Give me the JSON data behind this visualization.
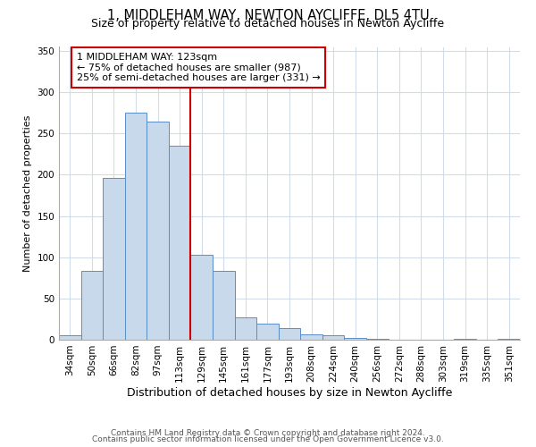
{
  "title": "1, MIDDLEHAM WAY, NEWTON AYCLIFFE, DL5 4TU",
  "subtitle": "Size of property relative to detached houses in Newton Aycliffe",
  "xlabel": "Distribution of detached houses by size in Newton Aycliffe",
  "ylabel": "Number of detached properties",
  "bar_labels": [
    "34sqm",
    "50sqm",
    "66sqm",
    "82sqm",
    "97sqm",
    "113sqm",
    "129sqm",
    "145sqm",
    "161sqm",
    "177sqm",
    "193sqm",
    "208sqm",
    "224sqm",
    "240sqm",
    "256sqm",
    "272sqm",
    "288sqm",
    "303sqm",
    "319sqm",
    "335sqm",
    "351sqm"
  ],
  "bar_values": [
    5,
    83,
    196,
    275,
    265,
    235,
    103,
    83,
    27,
    19,
    14,
    7,
    5,
    2,
    1,
    0,
    0,
    0,
    1,
    0,
    1
  ],
  "bar_color": "#c9d9ec",
  "bar_edge_color": "#5b8dc8",
  "vline_x": 5.5,
  "vline_color": "#cc0000",
  "annotation_text": "1 MIDDLEHAM WAY: 123sqm\n← 75% of detached houses are smaller (987)\n25% of semi-detached houses are larger (331) →",
  "annotation_box_color": "#ffffff",
  "annotation_box_edge_color": "#cc0000",
  "ylim": [
    0,
    355
  ],
  "yticks": [
    0,
    50,
    100,
    150,
    200,
    250,
    300,
    350
  ],
  "footer_line1": "Contains HM Land Registry data © Crown copyright and database right 2024.",
  "footer_line2": "Contains public sector information licensed under the Open Government Licence v3.0.",
  "background_color": "#ffffff",
  "grid_color": "#d0dce8",
  "title_fontsize": 10.5,
  "subtitle_fontsize": 9,
  "xlabel_fontsize": 9,
  "ylabel_fontsize": 8,
  "tick_fontsize": 7.5,
  "annotation_fontsize": 8,
  "footer_fontsize": 6.5
}
